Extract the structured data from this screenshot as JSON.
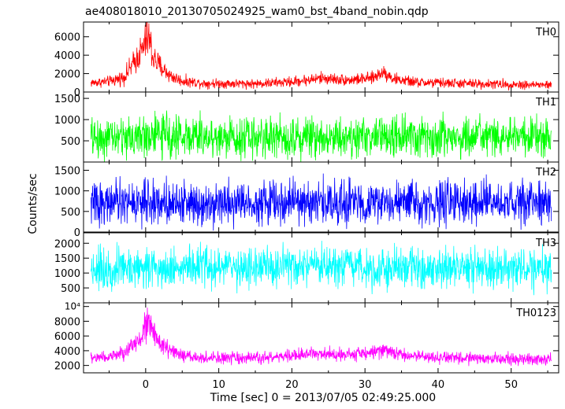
{
  "chart_data": {
    "type": "line",
    "title": "ae408018010_20130705024925_wam0_bst_4band_nobin.qdp",
    "xlabel": "Time [sec] 0 = 2013/07/05 02:49:25.000",
    "ylabel": "Counts/sec",
    "xlim": [
      -8.5,
      56.5
    ],
    "xticks": [
      0,
      10,
      20,
      30,
      40,
      50
    ],
    "xtick_labels": [
      "0",
      "10",
      "20",
      "30",
      "40",
      "50"
    ],
    "panels": [
      {
        "name": "TH0",
        "color": "#ff0000",
        "ylim": [
          0,
          7600
        ],
        "yticks": [
          0,
          2000,
          4000,
          6000
        ],
        "ytick_labels": [
          "0",
          "2000",
          "4000",
          "6000"
        ],
        "profile": [
          [
            -7.5,
            1000,
            250
          ],
          [
            -5,
            1150,
            280
          ],
          [
            -3,
            1600,
            400
          ],
          [
            -2,
            2700,
            600
          ],
          [
            -1,
            3900,
            800
          ],
          [
            -0.3,
            4800,
            1000
          ],
          [
            0.2,
            6000,
            1300
          ],
          [
            0.5,
            5700,
            1200
          ],
          [
            1,
            3800,
            900
          ],
          [
            1.7,
            3000,
            700
          ],
          [
            2.5,
            2400,
            500
          ],
          [
            3.5,
            1700,
            400
          ],
          [
            5,
            1200,
            300
          ],
          [
            8,
            950,
            260
          ],
          [
            15,
            900,
            250
          ],
          [
            20,
            1100,
            280
          ],
          [
            24,
            1500,
            330
          ],
          [
            28,
            1300,
            300
          ],
          [
            31,
            1500,
            330
          ],
          [
            32.5,
            2200,
            400
          ],
          [
            34,
            1400,
            320
          ],
          [
            37,
            1050,
            280
          ],
          [
            45,
            900,
            260
          ],
          [
            55.5,
            750,
            240
          ]
        ]
      },
      {
        "name": "TH1",
        "color": "#00ff00",
        "ylim": [
          0,
          1650
        ],
        "yticks": [
          500,
          1000,
          1500
        ],
        "ytick_labels": [
          "500",
          "1000",
          "1500"
        ],
        "profile": [
          [
            -7.5,
            560,
            230
          ],
          [
            0,
            600,
            250
          ],
          [
            0.5,
            640,
            260
          ],
          [
            10,
            580,
            230
          ],
          [
            25,
            600,
            240
          ],
          [
            35,
            590,
            230
          ],
          [
            55.5,
            570,
            230
          ]
        ]
      },
      {
        "name": "TH2",
        "color": "#0000ff",
        "ylim": [
          0,
          1700
        ],
        "yticks": [
          0,
          500,
          1000,
          1500
        ],
        "ytick_labels": [
          "0",
          "500",
          "1000",
          "1500"
        ],
        "profile": [
          [
            -7.5,
            700,
            250
          ],
          [
            0,
            720,
            260
          ],
          [
            20,
            720,
            260
          ],
          [
            40,
            700,
            250
          ],
          [
            55.5,
            690,
            250
          ]
        ]
      },
      {
        "name": "TH3",
        "color": "#00ffff",
        "ylim": [
          0,
          2350
        ],
        "yticks": [
          500,
          1000,
          1500,
          2000
        ],
        "ytick_labels": [
          "500",
          "1000",
          "1500",
          "2000"
        ],
        "profile": [
          [
            -7.5,
            1150,
            330
          ],
          [
            0,
            1200,
            340
          ],
          [
            20,
            1180,
            340
          ],
          [
            40,
            1160,
            330
          ],
          [
            55.5,
            1140,
            330
          ]
        ]
      },
      {
        "name": "TH0123",
        "color": "#ff00ff",
        "ylim": [
          1000,
          10500
        ],
        "yticks": [
          2000,
          4000,
          6000,
          8000
        ],
        "ytick_labels": [
          "2000",
          "4000",
          "6000",
          "8000"
        ],
        "extra_tick_label": "10⁴",
        "extra_tick_value": 10000,
        "profile": [
          [
            -7.5,
            3000,
            400
          ],
          [
            -5,
            3200,
            420
          ],
          [
            -3,
            3600,
            500
          ],
          [
            -2,
            4400,
            650
          ],
          [
            -1,
            5600,
            800
          ],
          [
            -0.3,
            6500,
            1000
          ],
          [
            0.2,
            8600,
            1300
          ],
          [
            0.5,
            8200,
            1200
          ],
          [
            1,
            6300,
            900
          ],
          [
            1.7,
            5200,
            700
          ],
          [
            2.5,
            4600,
            560
          ],
          [
            3.5,
            3900,
            460
          ],
          [
            5,
            3300,
            420
          ],
          [
            8,
            3000,
            400
          ],
          [
            15,
            2950,
            400
          ],
          [
            20,
            3300,
            420
          ],
          [
            24,
            3700,
            470
          ],
          [
            28,
            3500,
            450
          ],
          [
            31,
            3700,
            470
          ],
          [
            32.5,
            4300,
            560
          ],
          [
            34,
            3600,
            460
          ],
          [
            37,
            3200,
            420
          ],
          [
            45,
            2950,
            400
          ],
          [
            55.5,
            2800,
            400
          ]
        ]
      }
    ]
  }
}
